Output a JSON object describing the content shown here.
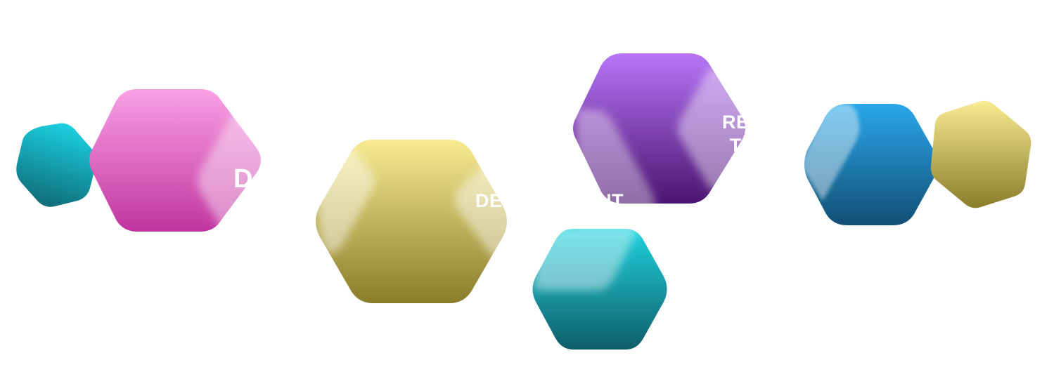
{
  "labels": {
    "design": "D",
    "development": "DEVELOPMENT",
    "release_line1": "RE",
    "release_line2": "T"
  },
  "colors": {
    "pink_top": "#f9a0e6",
    "pink_bottom": "#c0359e",
    "teal_top": "#1bd0e0",
    "teal_bottom": "#0f6a76",
    "yellow_top": "#f8eb92",
    "yellow_bottom": "#8a7d2a",
    "purple_top": "#b775f6",
    "purple_bottom": "#4b1470",
    "blue_top": "#2aa7ea",
    "blue_bottom": "#124f74",
    "cyan_top": "#1ed2de",
    "cyan_bottom": "#0f5e68",
    "glass": "#ffffff"
  }
}
